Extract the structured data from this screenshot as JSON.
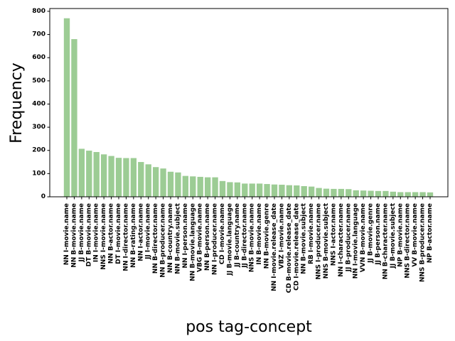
{
  "chart_data": {
    "type": "bar",
    "xlabel": "pos tag-concept",
    "ylabel": "Frequency",
    "ylim": [
      0,
      812
    ],
    "yticks": [
      0,
      100,
      200,
      300,
      400,
      500,
      600,
      700,
      800
    ],
    "grid": false,
    "bar_color": "#9ccc94",
    "categories": [
      "NN I-movie.name",
      "NN B-movie.name",
      "JJ B-movie.name",
      "DT B-movie.name",
      "IN I-movie.name",
      "NNS I-movie.name",
      "NN B-actor.name",
      "DT I-movie.name",
      "NN I-director.name",
      "NN B-rating.name",
      "NN I-actor.name",
      "JJ I-movie.name",
      "NN B-director.name",
      "NN B-producer.name",
      "NN B-country.name",
      "NN B-movie.subject",
      "NN I-person.name",
      "NN B-movie.language",
      "VBG B-movie.name",
      "NN B-person.name",
      "NN I-producer.name",
      "CD I-movie.name",
      "JJ B-movie.language",
      "JJ B-country.name",
      "JJ B-director.name",
      "NNS B-movie.name",
      "IN B-movie.name",
      "NN B-movie.genre",
      "NN I-movie.release_date",
      "VBZ I-movie.name",
      "CD B-movie.release_date",
      "CD I-movie.release_date",
      "NN B-movie.subject",
      "RB I-movie.name",
      "NNS I-producer.name",
      "NNS B-movie.subject",
      "NNS I-actor.name",
      "NN I-character.name",
      "JJ B-producer.name",
      "NN I-movie.language",
      "VVN B-movie.name",
      "JJ B-movie.genre",
      "JJ B-person.name",
      "NN B-character.name",
      "JJ B-movie.subject",
      "NP B-movie.name",
      "NNS B-director.name",
      "VV B-movie.name",
      "NNS B-producer.name",
      "NP B-actor.name"
    ],
    "values": [
      770,
      680,
      207,
      199,
      193,
      183,
      176,
      168,
      167,
      167,
      150,
      140,
      128,
      122,
      108,
      105,
      90,
      88,
      86,
      84,
      84,
      68,
      63,
      62,
      57,
      57,
      57,
      55,
      53,
      52,
      50,
      49,
      46,
      44,
      38,
      35,
      34,
      34,
      33,
      28,
      27,
      26,
      25,
      25,
      22,
      20,
      20,
      20,
      20,
      19
    ]
  }
}
